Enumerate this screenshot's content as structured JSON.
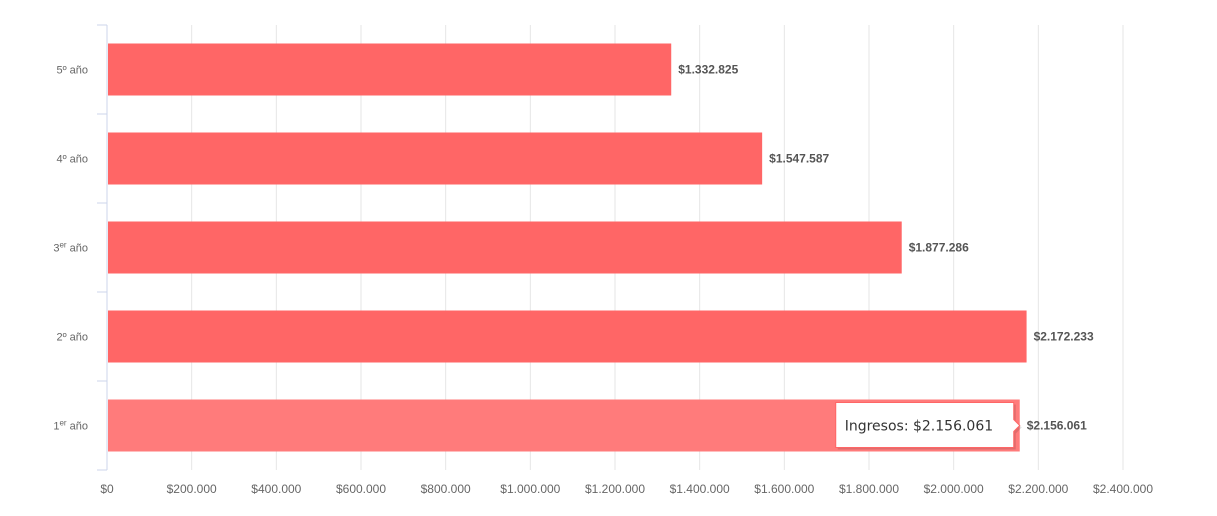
{
  "chart_data": {
    "type": "bar",
    "orientation": "horizontal",
    "title": "",
    "xlim": [
      0,
      2400000
    ],
    "ticks": [
      0,
      200000,
      400000,
      600000,
      800000,
      1000000,
      1200000,
      1400000,
      1600000,
      1800000,
      2000000,
      2200000,
      2400000
    ],
    "tick_labels": [
      "$0",
      "$200.000",
      "$400.000",
      "$600.000",
      "$800.000",
      "$1.000.000",
      "$1.200.000",
      "$1.400.000",
      "$1.600.000",
      "$1.800.000",
      "$2.000.000",
      "$2.200.000",
      "$2.400.000"
    ],
    "grid": true,
    "categories": [
      {
        "base": "5º año",
        "sup": ""
      },
      {
        "base": "4º año",
        "sup": ""
      },
      {
        "base": "3",
        "sup": "er",
        "rest": " año"
      },
      {
        "base": "2º año",
        "sup": ""
      },
      {
        "base": "1",
        "sup": "er",
        "rest": " año"
      }
    ],
    "series": [
      {
        "name": "Ingresos",
        "values": [
          1332825,
          1547587,
          1877286,
          2172233,
          2156061
        ],
        "labels": [
          "$1.332.825",
          "$1.547.587",
          "$1.877.286",
          "$2.172.233",
          "$2.156.061"
        ]
      }
    ],
    "colors": {
      "bar": "#ff6666",
      "bar_hover": "#ff7b7b",
      "grid": "#e6e6e6",
      "axis": "#ccd6eb"
    },
    "tooltip": {
      "index": 4,
      "text": "Ingresos: $2.156.061"
    }
  }
}
